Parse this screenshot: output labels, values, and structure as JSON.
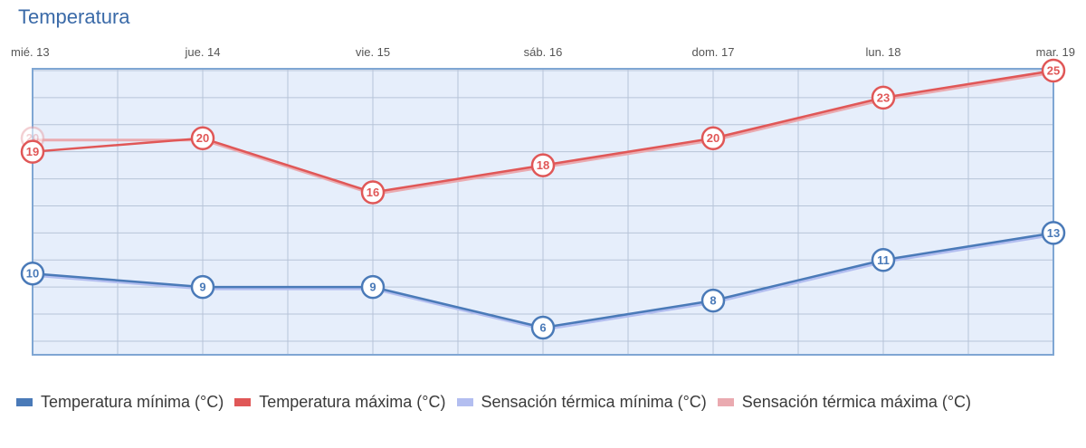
{
  "chart_data": {
    "type": "line",
    "title": "Temperatura",
    "categories": [
      "mié. 13",
      "jue. 14",
      "vie. 15",
      "sáb. 16",
      "dom. 17",
      "lun. 18",
      "mar. 19"
    ],
    "ylim": [
      0,
      27
    ],
    "grid": true,
    "legend_position": "bottom",
    "series": [
      {
        "name": "Temperatura mínima (°C)",
        "color": "#4a7ab8",
        "values": [
          10,
          9,
          9,
          6,
          8,
          11,
          13
        ]
      },
      {
        "name": "Temperatura máxima (°C)",
        "color": "#e05757",
        "values": [
          19,
          20,
          16,
          18,
          20,
          23,
          25
        ]
      },
      {
        "name": "Sensación térmica mínima (°C)",
        "color": "#b3bef0",
        "values": [
          10,
          9,
          9,
          6,
          8,
          11,
          13
        ]
      },
      {
        "name": "Sensación térmica máxima (°C)",
        "color": "#eaaab0",
        "values": [
          20,
          20,
          16,
          18,
          20,
          23,
          25
        ]
      }
    ]
  }
}
